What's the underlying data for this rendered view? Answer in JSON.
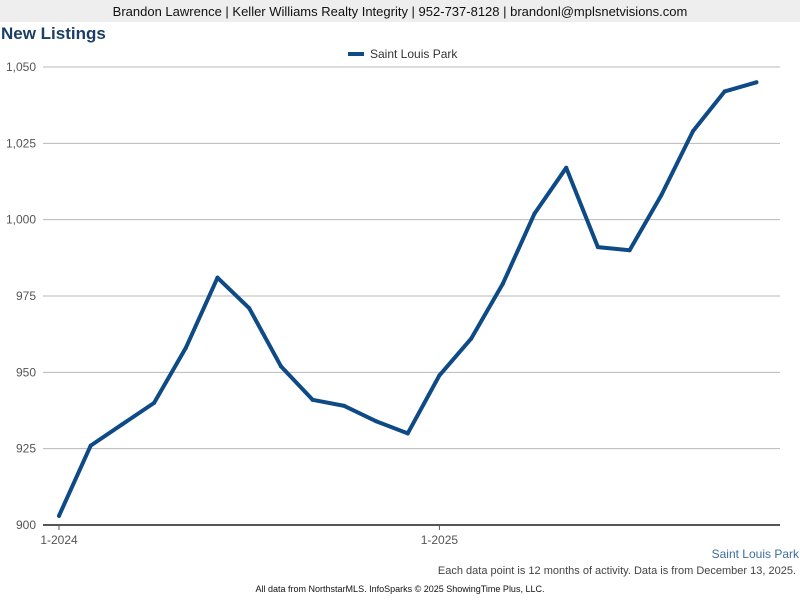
{
  "header": {
    "text": "Brandon Lawrence | Keller Williams Realty Integrity | 952-737-8128 | brandonl@mplsnetvisions.com"
  },
  "chart_title": "New Listings",
  "region_label": "Saint Louis Park",
  "note": "Each data point is 12 months of activity. Data is from December 13, 2025.",
  "footer": "All data from NorthstarMLS. InfoSparks © 2025 ShowingTime Plus, LLC.",
  "colors": {
    "series": "#0e4a86",
    "grid": "#b8b8b8",
    "axis": "#555555",
    "title": "#1b3f64"
  },
  "chart_data": {
    "type": "line",
    "title": "New Listings",
    "xlabel": "",
    "ylabel": "",
    "ylim": [
      900,
      1050
    ],
    "yticks": [
      900,
      925,
      950,
      975,
      1000,
      1025,
      1050
    ],
    "ytick_labels": [
      "900",
      "925",
      "950",
      "975",
      "1,000",
      "1,025",
      "1,050"
    ],
    "x": [
      "1-2024",
      "2-2024",
      "3-2024",
      "4-2024",
      "5-2024",
      "6-2024",
      "7-2024",
      "8-2024",
      "9-2024",
      "10-2024",
      "11-2024",
      "12-2024",
      "1-2025",
      "2-2025",
      "3-2025",
      "4-2025",
      "5-2025",
      "6-2025",
      "7-2025",
      "8-2025",
      "9-2025",
      "10-2025",
      "11-2025"
    ],
    "xtick_labels": [
      "1-2024",
      "1-2025"
    ],
    "legend": "top-center",
    "grid": true,
    "series": [
      {
        "name": "Saint Louis Park",
        "values": [
          903,
          926,
          933,
          940,
          958,
          981,
          971,
          952,
          941,
          939,
          934,
          930,
          949,
          961,
          979,
          1002,
          1017,
          991,
          990,
          1008,
          1029,
          1042,
          1045
        ]
      }
    ]
  }
}
